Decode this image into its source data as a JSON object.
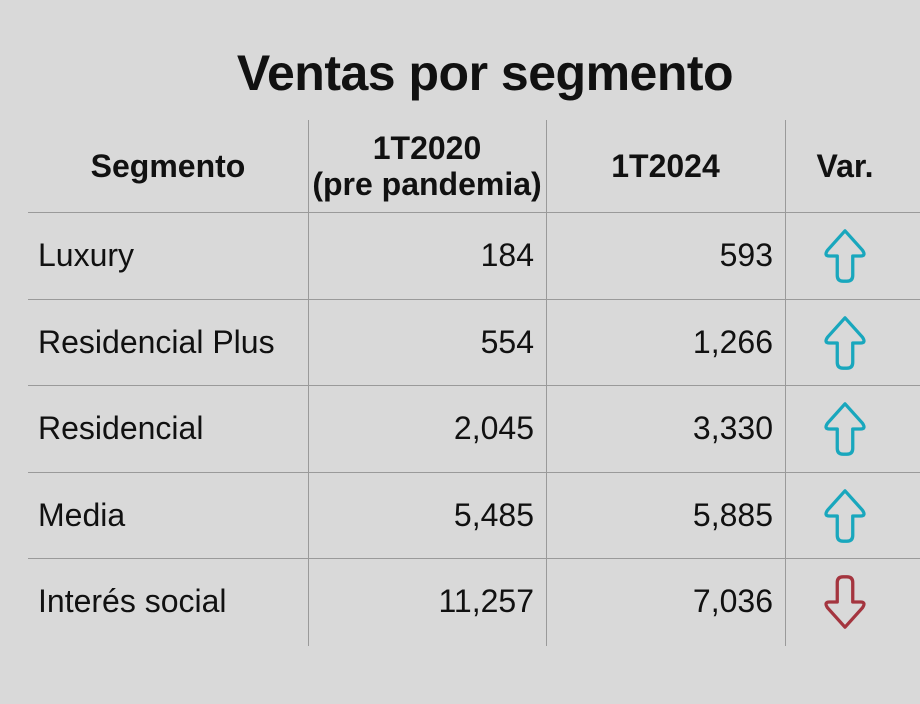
{
  "chart_data": {
    "type": "table",
    "title": "Ventas por segmento",
    "columns": [
      "Segmento",
      "1T2020",
      "(pre pandemia)",
      "1T2024",
      "Var."
    ],
    "rows": [
      {
        "segment": "Luxury",
        "v2020": "184",
        "v2024": "593",
        "var": "up"
      },
      {
        "segment": "Residencial Plus",
        "v2020": "554",
        "v2024": "1,266",
        "var": "up"
      },
      {
        "segment": "Residencial",
        "v2020": "2,045",
        "v2024": "3,330",
        "var": "up"
      },
      {
        "segment": "Media",
        "v2020": "5,485",
        "v2024": "5,885",
        "var": "up"
      },
      {
        "segment": "Interés social",
        "v2020": "11,257",
        "v2024": "7,036",
        "var": "down"
      }
    ],
    "colors": {
      "up": "#19a7bd",
      "down": "#a4353f"
    }
  }
}
